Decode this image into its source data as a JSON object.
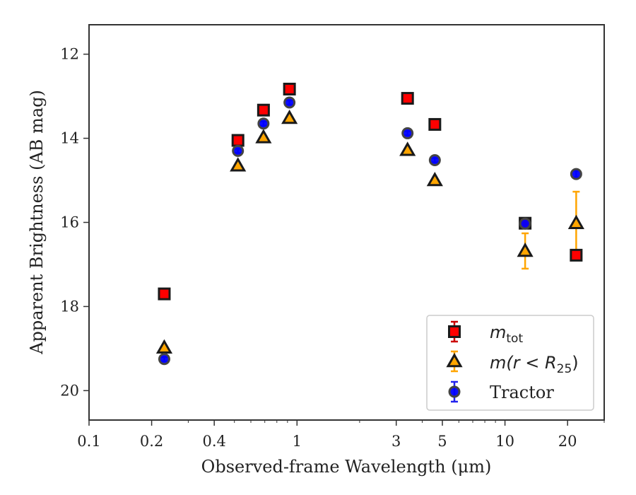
{
  "chart_data": {
    "type": "scatter",
    "xlabel": "Observed-frame Wavelength (μm)",
    "ylabel": "Apparent Brightness (AB mag)",
    "xscale": "log",
    "xlim": [
      0.1,
      30
    ],
    "ylim": [
      20.7,
      11.3
    ],
    "y_inverted": true,
    "x_ticks": [
      0.1,
      0.2,
      0.4,
      1,
      3,
      5,
      10,
      20
    ],
    "x_tick_labels": [
      "0.1",
      "0.2",
      "0.4",
      "1",
      "3",
      "5",
      "10",
      "20"
    ],
    "y_ticks": [
      12,
      14,
      16,
      18,
      20
    ],
    "y_tick_labels": [
      "12",
      "14",
      "16",
      "18",
      "20"
    ],
    "grid": false,
    "legend_position": "lower-right",
    "series": [
      {
        "name": "m_tot",
        "legend_main": "m",
        "legend_sub": "tot",
        "marker": "square",
        "color": "#ff0000",
        "edge": "#1a1a1a",
        "errcolor": "#cc0000",
        "x": [
          0.23,
          0.52,
          0.69,
          0.92,
          3.4,
          4.6,
          12.5,
          22.0
        ],
        "y": [
          17.7,
          14.05,
          13.33,
          12.83,
          13.05,
          13.67,
          16.02,
          16.78
        ],
        "yerr": [
          0.03,
          0.03,
          0.03,
          0.03,
          0.03,
          0.03,
          0.05,
          0.08
        ]
      },
      {
        "name": "m(r < R25)",
        "legend_main": "m(r < R",
        "legend_sub": "25",
        "legend_tail": ")",
        "marker": "triangle",
        "color": "#ffa500",
        "edge": "#1a1a1a",
        "errcolor": "#ffa500",
        "x": [
          0.23,
          0.52,
          0.69,
          0.92,
          3.4,
          4.6,
          12.5,
          22.0
        ],
        "y": [
          18.98,
          14.65,
          13.98,
          13.52,
          14.28,
          15.0,
          16.68,
          16.02
        ],
        "yerr": [
          0.03,
          0.03,
          0.03,
          0.03,
          0.03,
          0.03,
          0.42,
          0.75
        ]
      },
      {
        "name": "Tractor",
        "legend_main": "Tractor",
        "marker": "circle",
        "color": "#0000ff",
        "edge": "#444444",
        "errcolor": "#2222ee",
        "x": [
          0.23,
          0.52,
          0.69,
          0.92,
          3.4,
          4.6,
          12.5,
          22.0
        ],
        "y": [
          19.25,
          14.3,
          13.65,
          13.15,
          13.88,
          14.52,
          16.03,
          14.85
        ],
        "yerr": [
          0.05,
          0.05,
          0.05,
          0.05,
          0.05,
          0.05,
          0.08,
          0.08
        ]
      }
    ]
  }
}
